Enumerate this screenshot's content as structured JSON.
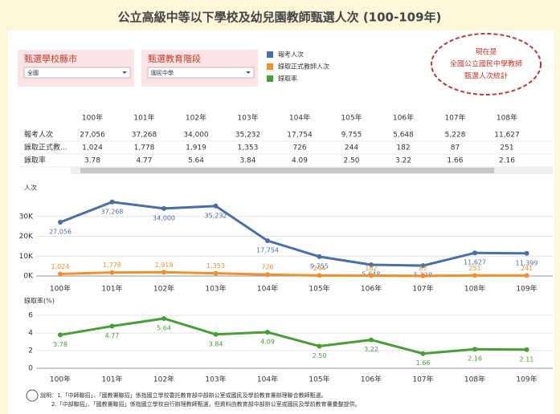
{
  "title": "公立高級中等以下學校及幼兒園教師甄選人次 (100-109年)",
  "filters": [
    {
      "label": "甄選學校縣市",
      "value": "全國"
    },
    {
      "label": "甄選教育階段",
      "value": "國民中學"
    }
  ],
  "callout": [
    "現在是",
    "全國公立國民中學教師",
    "甄選人次統計"
  ],
  "table": {
    "columns": [
      "100年",
      "101年",
      "102年",
      "103年",
      "104年",
      "105年",
      "106年",
      "107年",
      "108年"
    ],
    "rows": [
      {
        "label": "報考人次",
        "cells": [
          "27,056",
          "37,268",
          "34,000",
          "35,232",
          "17,754",
          "9,755",
          "5,648",
          "5,228",
          "11,627"
        ]
      },
      {
        "label": "錄取正式教...",
        "cells": [
          "1,024",
          "1,778",
          "1,919",
          "1,353",
          "726",
          "244",
          "182",
          "87",
          "251"
        ]
      },
      {
        "label": "錄取率",
        "cells": [
          "3.78",
          "4.77",
          "5.64",
          "3.84",
          "4.09",
          "2.50",
          "3.22",
          "1.66",
          "2.16"
        ]
      }
    ]
  },
  "notes": [
    "說明：1.「中師聯招」、「國教署聯招」係指國立學校委託教育部中部辦公室或國民及學前教育署辦理聯合教師甄選。",
    "2.「中部聯招」、「國教署聯招」係指國立學校自行辦理教師甄選，但資料由教育部中部辦公室或國民及學前教育署彙整提供。"
  ],
  "chart_data": [
    {
      "type": "line",
      "y_label": "人次",
      "categories": [
        "100年",
        "101年",
        "102年",
        "103年",
        "104年",
        "105年",
        "106年",
        "107年",
        "108年",
        "109年"
      ],
      "ylim": [
        0,
        40000
      ],
      "yticks": [
        {
          "value": 0,
          "label": "0K"
        },
        {
          "value": 10000,
          "label": "10K"
        },
        {
          "value": 20000,
          "label": "20K"
        },
        {
          "value": 30000,
          "label": "30K"
        }
      ],
      "grid": true,
      "series": [
        {
          "name": "報考人次",
          "color": "#4a6fa5",
          "values": [
            27056,
            37268,
            34000,
            35232,
            17754,
            9755,
            5648,
            5228,
            11627,
            11399
          ],
          "value_labels": [
            "27,056",
            "37,268",
            "34,000",
            "35,232",
            "17,754",
            "9,755",
            "5,648",
            "5,228",
            "11,627",
            "11,399"
          ]
        },
        {
          "name": "錄取正式教師人次",
          "color": "#f0902c",
          "values": [
            1024,
            1778,
            1919,
            1353,
            726,
            244,
            182,
            87,
            251,
            241
          ],
          "value_labels": [
            "1,024",
            "1,778",
            "1,919",
            "1,353",
            "726",
            "244",
            "182",
            "87",
            "251",
            "241"
          ]
        }
      ]
    },
    {
      "type": "line",
      "y_label": "錄取率(%)",
      "categories": [
        "100年",
        "101年",
        "102年",
        "103年",
        "104年",
        "105年",
        "106年",
        "107年",
        "108年",
        "109年"
      ],
      "ylim": [
        0,
        7
      ],
      "yticks": [
        0,
        2,
        4,
        6
      ],
      "grid": true,
      "series": [
        {
          "name": "錄取率",
          "color": "#4a9e3a",
          "values": [
            3.78,
            4.77,
            5.64,
            3.84,
            4.09,
            2.5,
            3.22,
            1.66,
            2.16,
            2.11
          ],
          "value_labels": [
            "3.78",
            "4.77",
            "5.64",
            "3.84",
            "4.09",
            "2.50",
            "3.22",
            "1.66",
            "2.16",
            "2.11"
          ]
        }
      ]
    }
  ]
}
